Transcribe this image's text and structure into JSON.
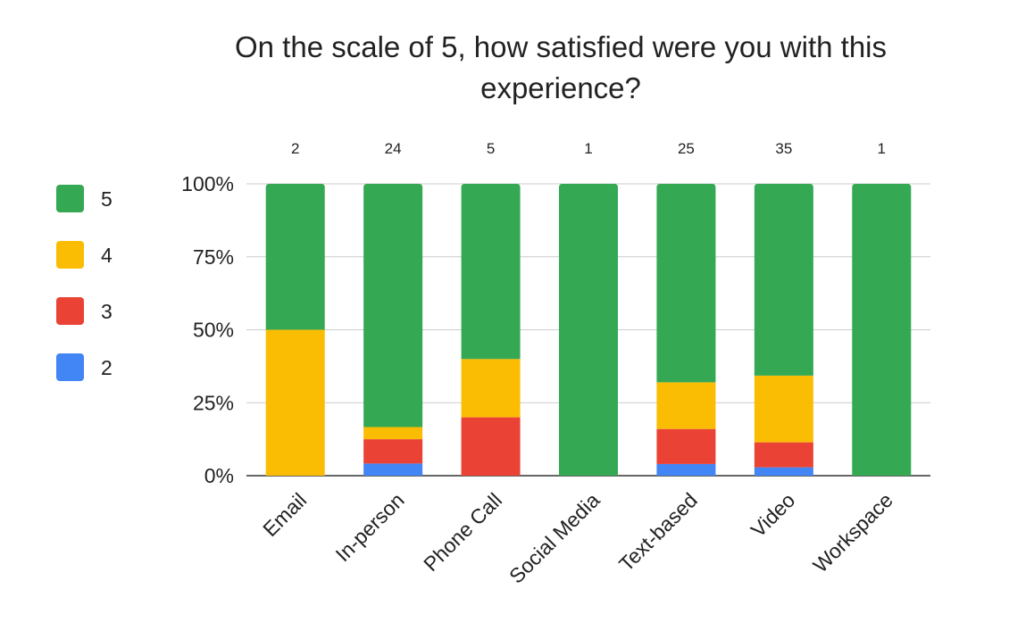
{
  "chart_data": {
    "type": "bar",
    "stacked": true,
    "normalized_percent": true,
    "title": "On the scale of 5, how satisfied were you with this experience?",
    "title_lines": [
      "On the scale of 5, how satisfied were you with this",
      "experience?"
    ],
    "xlabel": "",
    "ylabel": "",
    "categories": [
      "Email",
      "In-person",
      "Phone Call",
      "Social Media",
      "Text-based",
      "Video",
      "Workspace"
    ],
    "totals": [
      2,
      24,
      5,
      1,
      25,
      35,
      1
    ],
    "yticks": [
      "0%",
      "25%",
      "50%",
      "75%",
      "100%"
    ],
    "ylim": [
      0,
      100
    ],
    "grid": true,
    "legend_position": "left",
    "series": [
      {
        "name": "2",
        "color": "#4285f4",
        "values": [
          0,
          1,
          0,
          0,
          1,
          1,
          0
        ]
      },
      {
        "name": "3",
        "color": "#ea4335",
        "values": [
          0,
          2,
          1,
          0,
          3,
          3,
          0
        ]
      },
      {
        "name": "4",
        "color": "#fbbc04",
        "values": [
          1,
          1,
          1,
          0,
          4,
          8,
          0
        ]
      },
      {
        "name": "5",
        "color": "#34a853",
        "values": [
          1,
          20,
          3,
          1,
          17,
          23,
          1
        ]
      }
    ],
    "legend_order": [
      "5",
      "4",
      "3",
      "2"
    ]
  }
}
